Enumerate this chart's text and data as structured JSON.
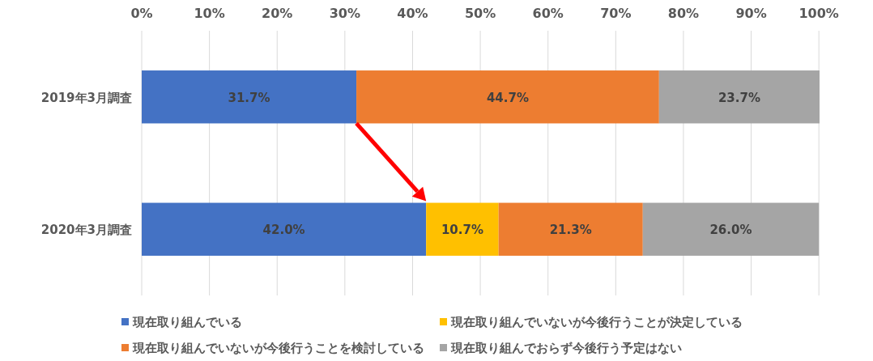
{
  "chart_data": {
    "type": "bar",
    "orientation": "horizontal",
    "stacked": true,
    "categories": [
      "2019年3月調査",
      "2020年3月調査"
    ],
    "series": [
      {
        "name": "現在取り組んでいる",
        "color": "#4472c4",
        "values": [
          31.7,
          42.0
        ],
        "value_labels": [
          "31.7%",
          "42.0%"
        ]
      },
      {
        "name": "現在取り組んでいないが今後行うことが決定している",
        "color": "#ffc000",
        "values": [
          null,
          10.7
        ],
        "value_labels": [
          null,
          "10.7%"
        ]
      },
      {
        "name": "現在取り組んでいないが今後行うことを検討している",
        "color": "#ed7d31",
        "values": [
          44.7,
          21.3
        ],
        "value_labels": [
          "44.7%",
          "21.3%"
        ]
      },
      {
        "name": "現在取り組んでおらず今後行う予定はない",
        "color": "#a5a5a5",
        "values": [
          23.7,
          26.0
        ],
        "value_labels": [
          "23.7%",
          "26.0%"
        ]
      }
    ],
    "xlim": [
      0,
      100.1
    ],
    "xticks": [
      {
        "value": 0,
        "label": "0%"
      },
      {
        "value": 10,
        "label": "10%"
      },
      {
        "value": 20,
        "label": "20%"
      },
      {
        "value": 30,
        "label": "30%"
      },
      {
        "value": 40,
        "label": "40%"
      },
      {
        "value": 50,
        "label": "50%"
      },
      {
        "value": 60,
        "label": "60%"
      },
      {
        "value": 70,
        "label": "70%"
      },
      {
        "value": 80,
        "label": "80%"
      },
      {
        "value": 90,
        "label": "90%"
      },
      {
        "value": 100,
        "label": "100%"
      }
    ],
    "grid": "x",
    "legend": "bottom"
  }
}
